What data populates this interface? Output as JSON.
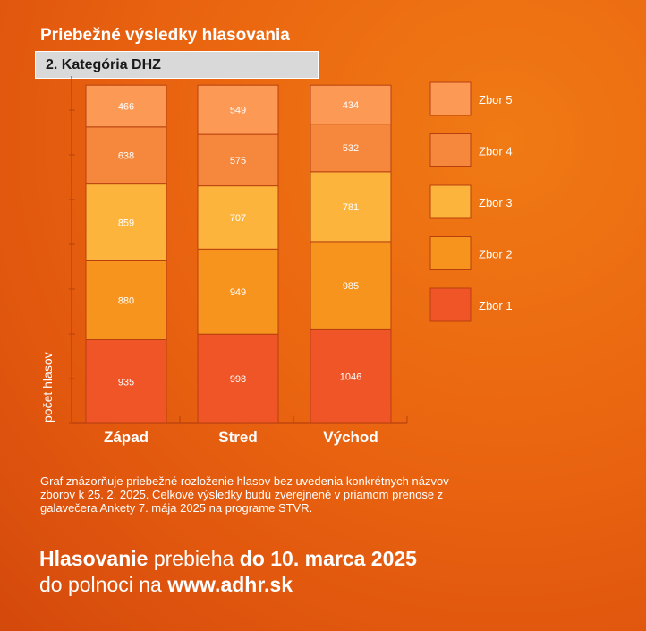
{
  "header": {
    "title": "Priebežné výsledky hlasovania",
    "subtitle": "2. Kategória DHZ"
  },
  "chart_data": {
    "type": "bar",
    "stacked": true,
    "categories": [
      "Západ",
      "Stred",
      "Východ"
    ],
    "ylabel": "počet hlasov",
    "legend_position": "right",
    "series": [
      {
        "name": "Zbor 1",
        "color": "#ef5526",
        "values": [
          935,
          998,
          1046
        ]
      },
      {
        "name": "Zbor 2",
        "color": "#f7941d",
        "values": [
          880,
          949,
          985
        ]
      },
      {
        "name": "Zbor 3",
        "color": "#fdb43c",
        "values": [
          859,
          707,
          781
        ]
      },
      {
        "name": "Zbor 4",
        "color": "#f5883c",
        "values": [
          638,
          575,
          532
        ]
      },
      {
        "name": "Zbor 5",
        "color": "#fc9a55",
        "values": [
          466,
          549,
          434
        ]
      }
    ]
  },
  "footnote": "Graf znázorňuje priebežné rozloženie hlasov bez uvedenia konkrétnych názvov zborov k 25. 2. 2025. Celkové výsledky budú zverejnené v priamom prenose z galavečera Ankety 7. mája 2025 na programe STVR.",
  "cta": {
    "line1_bold": "Hlasovanie",
    "line1_regular": "prebieha",
    "line1_bold2": "do 10. marca 2025",
    "line2_regular": "do polnoci na",
    "line2_url": "www.adhr.sk"
  }
}
